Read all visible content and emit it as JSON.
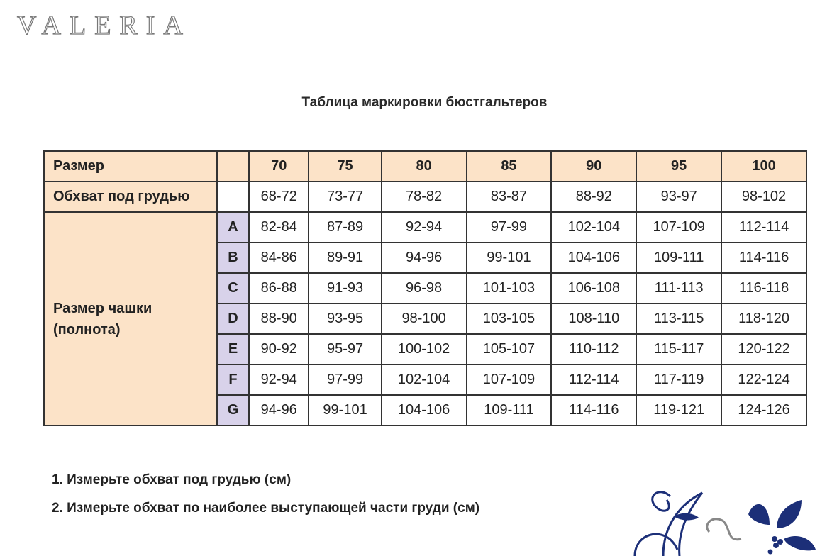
{
  "logo": "VALERIA",
  "title": "Таблица маркировки бюстгальтеров",
  "table": {
    "size_label": "Размер",
    "underbust_label": "Обхват под грудью",
    "cup_label": "Размер чашки (полнота)",
    "sizes": [
      "70",
      "75",
      "80",
      "85",
      "90",
      "95",
      "100"
    ],
    "underbust": [
      "68-72",
      "73-77",
      "78-82",
      "83-87",
      "88-92",
      "93-97",
      "98-102"
    ],
    "cups": [
      {
        "letter": "A",
        "values": [
          "82-84",
          "87-89",
          "92-94",
          "97-99",
          "102-104",
          "107-109",
          "112-114"
        ]
      },
      {
        "letter": "B",
        "values": [
          "84-86",
          "89-91",
          "94-96",
          "99-101",
          "104-106",
          "109-111",
          "114-116"
        ]
      },
      {
        "letter": "C",
        "values": [
          "86-88",
          "91-93",
          "96-98",
          "101-103",
          "106-108",
          "111-113",
          "116-118"
        ]
      },
      {
        "letter": "D",
        "values": [
          "88-90",
          "93-95",
          "98-100",
          "103-105",
          "108-110",
          "113-115",
          "118-120"
        ]
      },
      {
        "letter": "E",
        "values": [
          "90-92",
          "95-97",
          "100-102",
          "105-107",
          "110-112",
          "115-117",
          "120-122"
        ]
      },
      {
        "letter": "F",
        "values": [
          "92-94",
          "97-99",
          "102-104",
          "107-109",
          "112-114",
          "117-119",
          "122-124"
        ]
      },
      {
        "letter": "G",
        "values": [
          "94-96",
          "99-101",
          "104-106",
          "109-111",
          "114-116",
          "119-121",
          "124-126"
        ]
      }
    ]
  },
  "notes": [
    "1. Измерьте обхват под грудью (см)",
    "2. Измерьте обхват по наиболее выступающей части груди (см)"
  ],
  "colors": {
    "header_bg": "#fce3c8",
    "cup_letter_bg": "#d8d2ea",
    "ornament": "#1c2f78"
  }
}
